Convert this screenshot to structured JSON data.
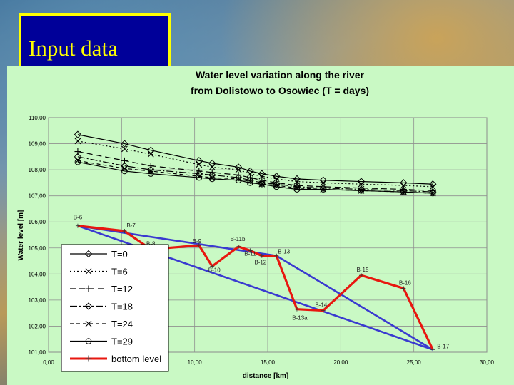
{
  "slide": {
    "title": "Input data",
    "colors": {
      "title_box": "#000099",
      "title_border": "#ffff00",
      "title_text": "#ffff00",
      "panel": "#c9f9c4"
    }
  },
  "chart_data": {
    "type": "line",
    "title": "Water level variation along the river",
    "subtitle": "from Dolistowo to Osowiec (T = days)",
    "xlabel": "distance [km]",
    "ylabel": "Water level [m]",
    "xlim": [
      0,
      30
    ],
    "ylim": [
      101,
      110
    ],
    "x_ticks": [
      "0,00",
      "5,00",
      "10,00",
      "15,00",
      "20,00",
      "25,00",
      "30,00"
    ],
    "y_ticks": [
      "101,00",
      "102,00",
      "103,00",
      "104,00",
      "105,00",
      "106,00",
      "107,00",
      "108,00",
      "109,00",
      "110,00"
    ],
    "grid": true,
    "legend_placement": "bottom-left",
    "x": [
      2.0,
      5.2,
      7.0,
      10.3,
      11.2,
      13.0,
      13.8,
      14.6,
      15.6,
      17.0,
      18.8,
      21.4,
      24.3,
      26.3
    ],
    "series": [
      {
        "name": "T=0",
        "marker": "diamond",
        "dash": "",
        "values": [
          109.35,
          109.0,
          108.75,
          108.35,
          108.25,
          108.1,
          107.95,
          107.85,
          107.75,
          107.65,
          107.6,
          107.55,
          107.5,
          107.45
        ]
      },
      {
        "name": "T=6",
        "marker": "x",
        "dash": "2,3",
        "values": [
          109.1,
          108.8,
          108.6,
          108.2,
          108.1,
          108.0,
          107.85,
          107.75,
          107.65,
          107.55,
          107.5,
          107.45,
          107.4,
          107.35
        ]
      },
      {
        "name": "T=12",
        "marker": "plus",
        "dash": "8,5",
        "values": [
          108.7,
          108.35,
          108.15,
          107.95,
          107.9,
          107.8,
          107.7,
          107.6,
          107.5,
          107.4,
          107.35,
          107.3,
          107.25,
          107.2
        ]
      },
      {
        "name": "T=18",
        "marker": "diamond",
        "dash": "10,3,2,3",
        "values": [
          108.5,
          108.15,
          108.0,
          107.85,
          107.8,
          107.7,
          107.6,
          107.5,
          107.45,
          107.35,
          107.3,
          107.25,
          107.2,
          107.15
        ]
      },
      {
        "name": "T=24",
        "marker": "x",
        "dash": "5,4",
        "values": [
          108.35,
          108.05,
          107.95,
          107.75,
          107.7,
          107.65,
          107.55,
          107.45,
          107.4,
          107.3,
          107.25,
          107.2,
          107.15,
          107.1
        ]
      },
      {
        "name": "T=29",
        "marker": "circle",
        "dash": "",
        "values": [
          108.3,
          107.95,
          107.85,
          107.7,
          107.65,
          107.6,
          107.5,
          107.45,
          107.35,
          107.25,
          107.25,
          107.2,
          107.15,
          107.1
        ]
      }
    ],
    "bottom_level": {
      "name": "bottom level",
      "color": "#e8170f",
      "points": [
        {
          "label": "B-6",
          "x": 2.0,
          "y": 105.85
        },
        {
          "label": "B-7",
          "x": 5.2,
          "y": 105.65
        },
        {
          "label": "B-8",
          "x": 7.0,
          "y": 104.95
        },
        {
          "label": "B-9",
          "x": 10.3,
          "y": 105.1
        },
        {
          "label": "B-10",
          "x": 11.2,
          "y": 104.3
        },
        {
          "label": "B-11b",
          "x": 13.0,
          "y": 105.05
        },
        {
          "label": "B-11",
          "x": 13.8,
          "y": 104.9
        },
        {
          "label": "B-12",
          "x": 14.6,
          "y": 104.7
        },
        {
          "label": "B-13",
          "x": 15.6,
          "y": 104.7
        },
        {
          "label": "B-13a",
          "x": 17.0,
          "y": 102.65
        },
        {
          "label": "B-14",
          "x": 18.8,
          "y": 102.6
        },
        {
          "label": "B-15",
          "x": 21.4,
          "y": 103.95
        },
        {
          "label": "B-16",
          "x": 24.3,
          "y": 103.45
        },
        {
          "label": "B-17",
          "x": 26.3,
          "y": 101.1
        }
      ]
    },
    "overlay_lines": {
      "color": "#3a3ad0",
      "segments": [
        [
          [
            2.0,
            105.85
          ],
          [
            15.6,
            104.7
          ]
        ],
        [
          [
            15.6,
            104.7
          ],
          [
            26.3,
            101.1
          ]
        ],
        [
          [
            2.0,
            105.85
          ],
          [
            26.3,
            101.1
          ]
        ]
      ]
    }
  }
}
